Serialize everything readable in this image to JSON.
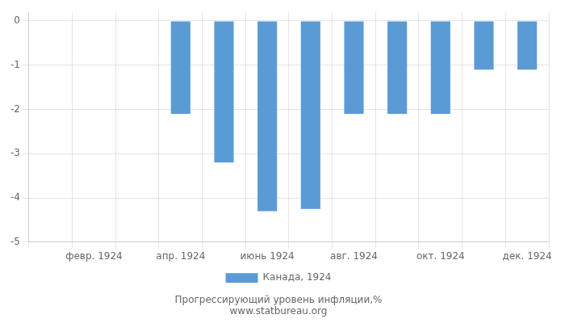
{
  "chart_data": {
    "type": "bar",
    "title": "Прогрессирующий уровень инфляции,%",
    "subtitle": "www.statbureau.org",
    "categories": [
      null,
      "февр. 1924",
      null,
      "апр. 1924",
      null,
      "июнь 1924",
      null,
      "авг. 1924",
      null,
      "окт. 1924",
      null,
      "дек. 1924"
    ],
    "series": [
      {
        "name": "Канада, 1924",
        "color": "#5b9bd5",
        "values": [
          0,
          0,
          0,
          -2.1,
          -3.2,
          -4.3,
          -4.25,
          -2.1,
          -2.1,
          -2.1,
          -1.1,
          -1.1
        ]
      }
    ],
    "ylim": [
      -5,
      0.2
    ],
    "yticks": [
      0,
      -1,
      -2,
      -3,
      -4,
      -5
    ],
    "grid": true,
    "legend": "bottom"
  }
}
